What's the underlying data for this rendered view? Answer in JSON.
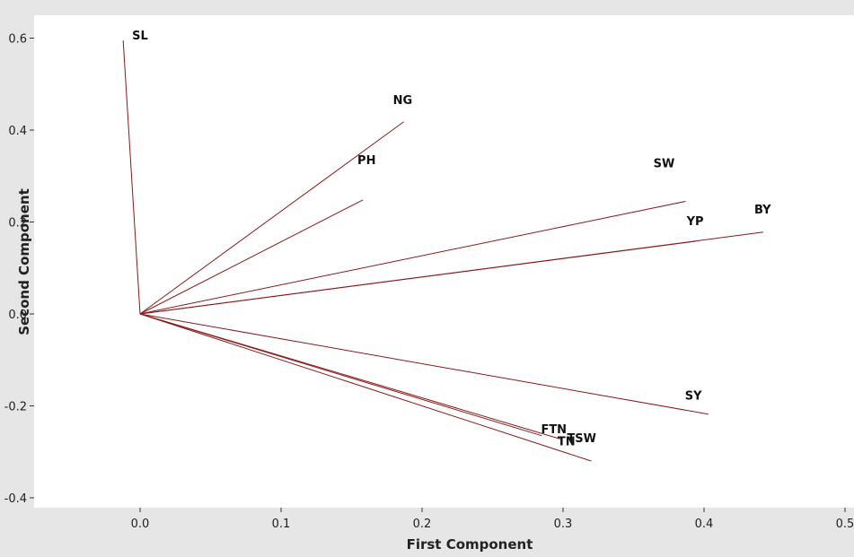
{
  "chart_data": {
    "type": "line",
    "title": "",
    "xlabel": "First Component",
    "ylabel": "Second Component",
    "xlim": [
      -0.04,
      0.5
    ],
    "ylim": [
      -0.42,
      0.64
    ],
    "x_ticks": [
      "0.0",
      "0.1",
      "0.2",
      "0.3",
      "0.4",
      "0.5"
    ],
    "y_ticks": [
      "0.6",
      "0.4",
      "0.2",
      "0.0",
      "-0.2",
      "-0.4"
    ],
    "grid": false,
    "legend": "none",
    "line_color": "#8b1a1a",
    "vectors": [
      {
        "label": "SL",
        "x": -0.012,
        "y": 0.595
      },
      {
        "label": "NG",
        "x": 0.187,
        "y": 0.418
      },
      {
        "label": "PH",
        "x": 0.158,
        "y": 0.248
      },
      {
        "label": "SW",
        "x": 0.387,
        "y": 0.245
      },
      {
        "label": "YP",
        "x": 0.394,
        "y": 0.158
      },
      {
        "label": "BY",
        "x": 0.442,
        "y": 0.178
      },
      {
        "label": "SY",
        "x": 0.403,
        "y": -0.218
      },
      {
        "label": "FTN",
        "x": 0.285,
        "y": -0.265
      },
      {
        "label": "TN",
        "x": 0.298,
        "y": -0.272
      },
      {
        "label": "TSW",
        "x": 0.32,
        "y": -0.32
      }
    ]
  }
}
